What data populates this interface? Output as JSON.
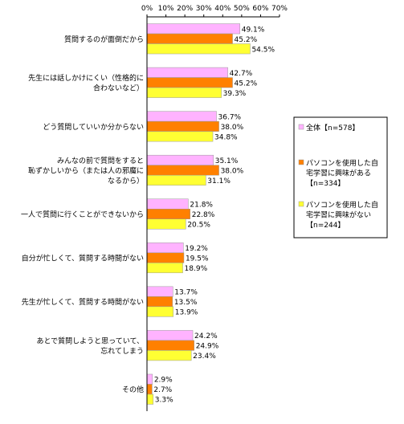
{
  "chart_data": {
    "type": "bar",
    "orientation": "horizontal",
    "xlim": [
      0,
      70
    ],
    "x_ticks": [
      "0%",
      "10%",
      "20%",
      "30%",
      "40%",
      "50%",
      "60%",
      "70%"
    ],
    "tick_values": [
      0,
      10,
      20,
      30,
      40,
      50,
      60,
      70
    ],
    "unit": "%",
    "grid": false,
    "legend_position": "right",
    "categories": [
      {
        "lines": [
          "質問するのが面倒だから"
        ]
      },
      {
        "lines": [
          "先生には話しかけにくい（性格的に",
          "合わないなど）"
        ]
      },
      {
        "lines": [
          "どう質問していいか分からない"
        ]
      },
      {
        "lines": [
          "みんなの前で質問をすると",
          "恥ずかしいから（または人の邪魔に",
          "なるから）"
        ]
      },
      {
        "lines": [
          "一人で質問に行くことができないから"
        ]
      },
      {
        "lines": [
          "自分が忙しくて、質問する時間がない"
        ]
      },
      {
        "lines": [
          "先生が忙しくて、質問する時間がない"
        ]
      },
      {
        "lines": [
          "あとで質問しようと思っていて、",
          "忘れてしまう"
        ]
      },
      {
        "lines": [
          "その他"
        ]
      }
    ],
    "series": [
      {
        "name_lines": [
          "全体【n=578】"
        ],
        "color": "#ffb3ff",
        "values": [
          49.1,
          42.7,
          36.7,
          35.1,
          21.8,
          19.2,
          13.7,
          24.2,
          2.9
        ],
        "labels": [
          "49.1%",
          "42.7%",
          "36.7%",
          "35.1%",
          "21.8%",
          "19.2%",
          "13.7%",
          "24.2%",
          "2.9%"
        ]
      },
      {
        "name_lines": [
          "パソコンを使用した自",
          "宅学習に興味がある",
          "【n=334】"
        ],
        "color": "#ff8000",
        "values": [
          45.2,
          45.2,
          38.0,
          38.0,
          22.8,
          19.5,
          13.5,
          24.9,
          2.7
        ],
        "labels": [
          "45.2%",
          "45.2%",
          "38.0%",
          "38.0%",
          "22.8%",
          "19.5%",
          "13.5%",
          "24.9%",
          "2.7%"
        ]
      },
      {
        "name_lines": [
          "パソコンを使用した自",
          "宅学習に興味がない",
          "【n=244】"
        ],
        "color": "#ffff33",
        "values": [
          54.5,
          39.3,
          34.8,
          31.1,
          20.5,
          18.9,
          13.9,
          23.4,
          3.3
        ],
        "labels": [
          "54.5%",
          "39.3%",
          "34.8%",
          "31.1%",
          "20.5%",
          "18.9%",
          "13.9%",
          "23.4%",
          "3.3%"
        ]
      }
    ]
  }
}
